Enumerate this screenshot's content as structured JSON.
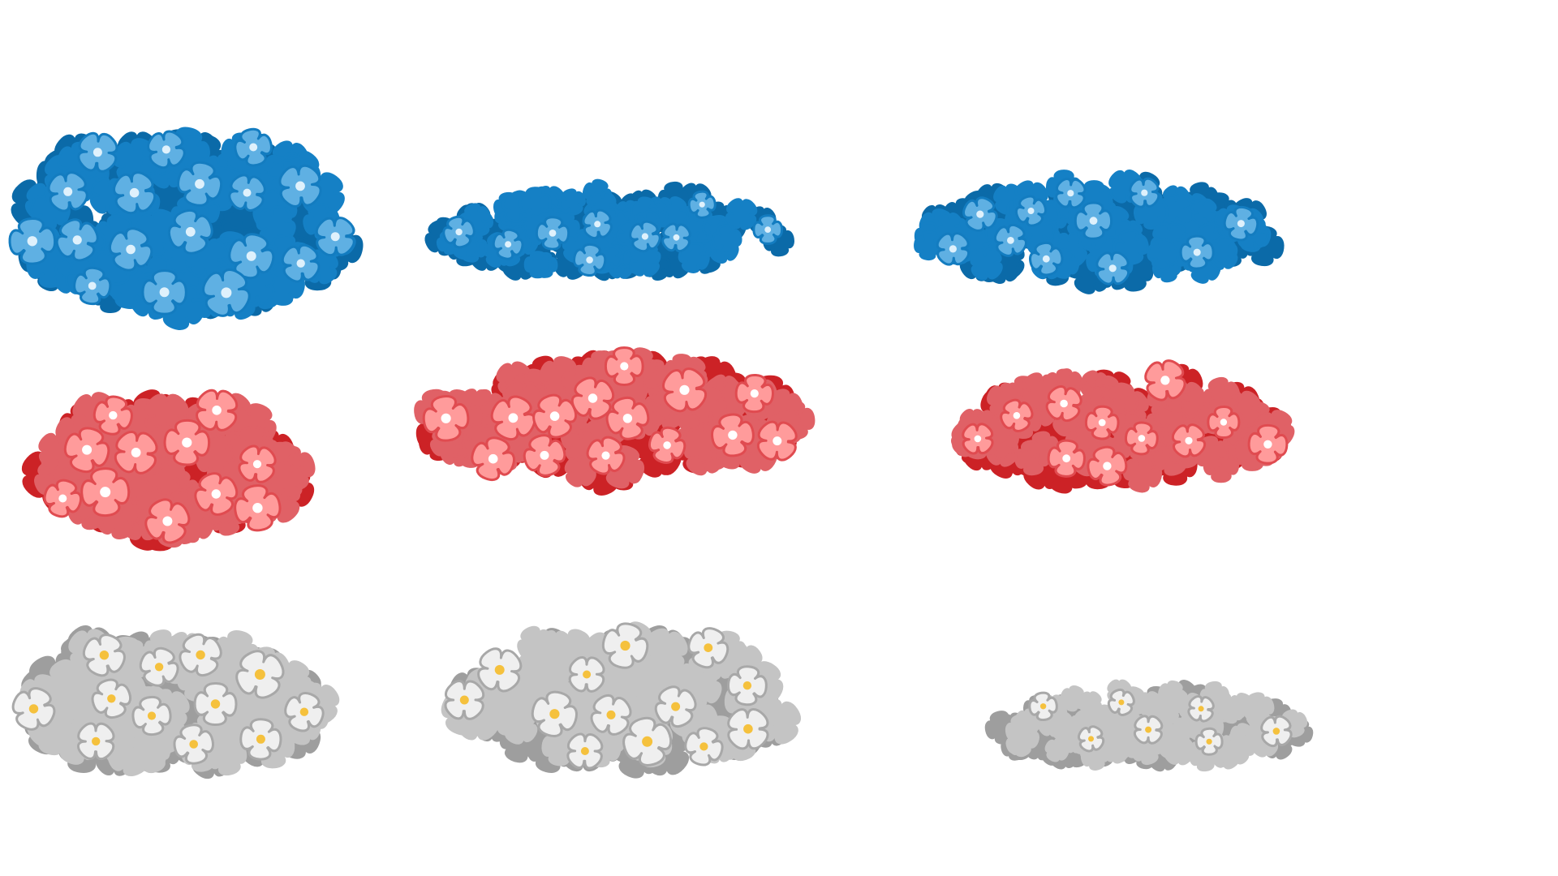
{
  "sheet": {
    "background": "#ffffff",
    "palettes": {
      "blue": {
        "dark": "#0b6aa8",
        "mid": "#1580c5",
        "light": "#5fb0e3",
        "outline": "#137cc0",
        "center": "#dff1fc"
      },
      "red": {
        "dark": "#cc2226",
        "mid": "#e06166",
        "light": "#ff9b9b",
        "outline": "#e04b50",
        "center": "#ffffff"
      },
      "white": {
        "dark": "#9e9e9e",
        "mid": "#c4c4c4",
        "light": "#efefef",
        "outline": "#a8a8a8",
        "center": "#f5c13d"
      }
    },
    "bushes": [
      {
        "name": "blue-bush-large",
        "palette": "blue",
        "variant": 1
      },
      {
        "name": "blue-bush-wide",
        "palette": "blue",
        "variant": 2
      },
      {
        "name": "blue-bush-long",
        "palette": "blue",
        "variant": 3
      },
      {
        "name": "red-bush-rounded",
        "palette": "red",
        "variant": 4
      },
      {
        "name": "red-bush-wide",
        "palette": "red",
        "variant": 5
      },
      {
        "name": "red-bush-medium",
        "palette": "red",
        "variant": 6
      },
      {
        "name": "white-bush-large",
        "palette": "white",
        "variant": 7
      },
      {
        "name": "white-bush-mound",
        "palette": "white",
        "variant": 8
      },
      {
        "name": "white-bush-low",
        "palette": "white",
        "variant": 9
      }
    ]
  }
}
